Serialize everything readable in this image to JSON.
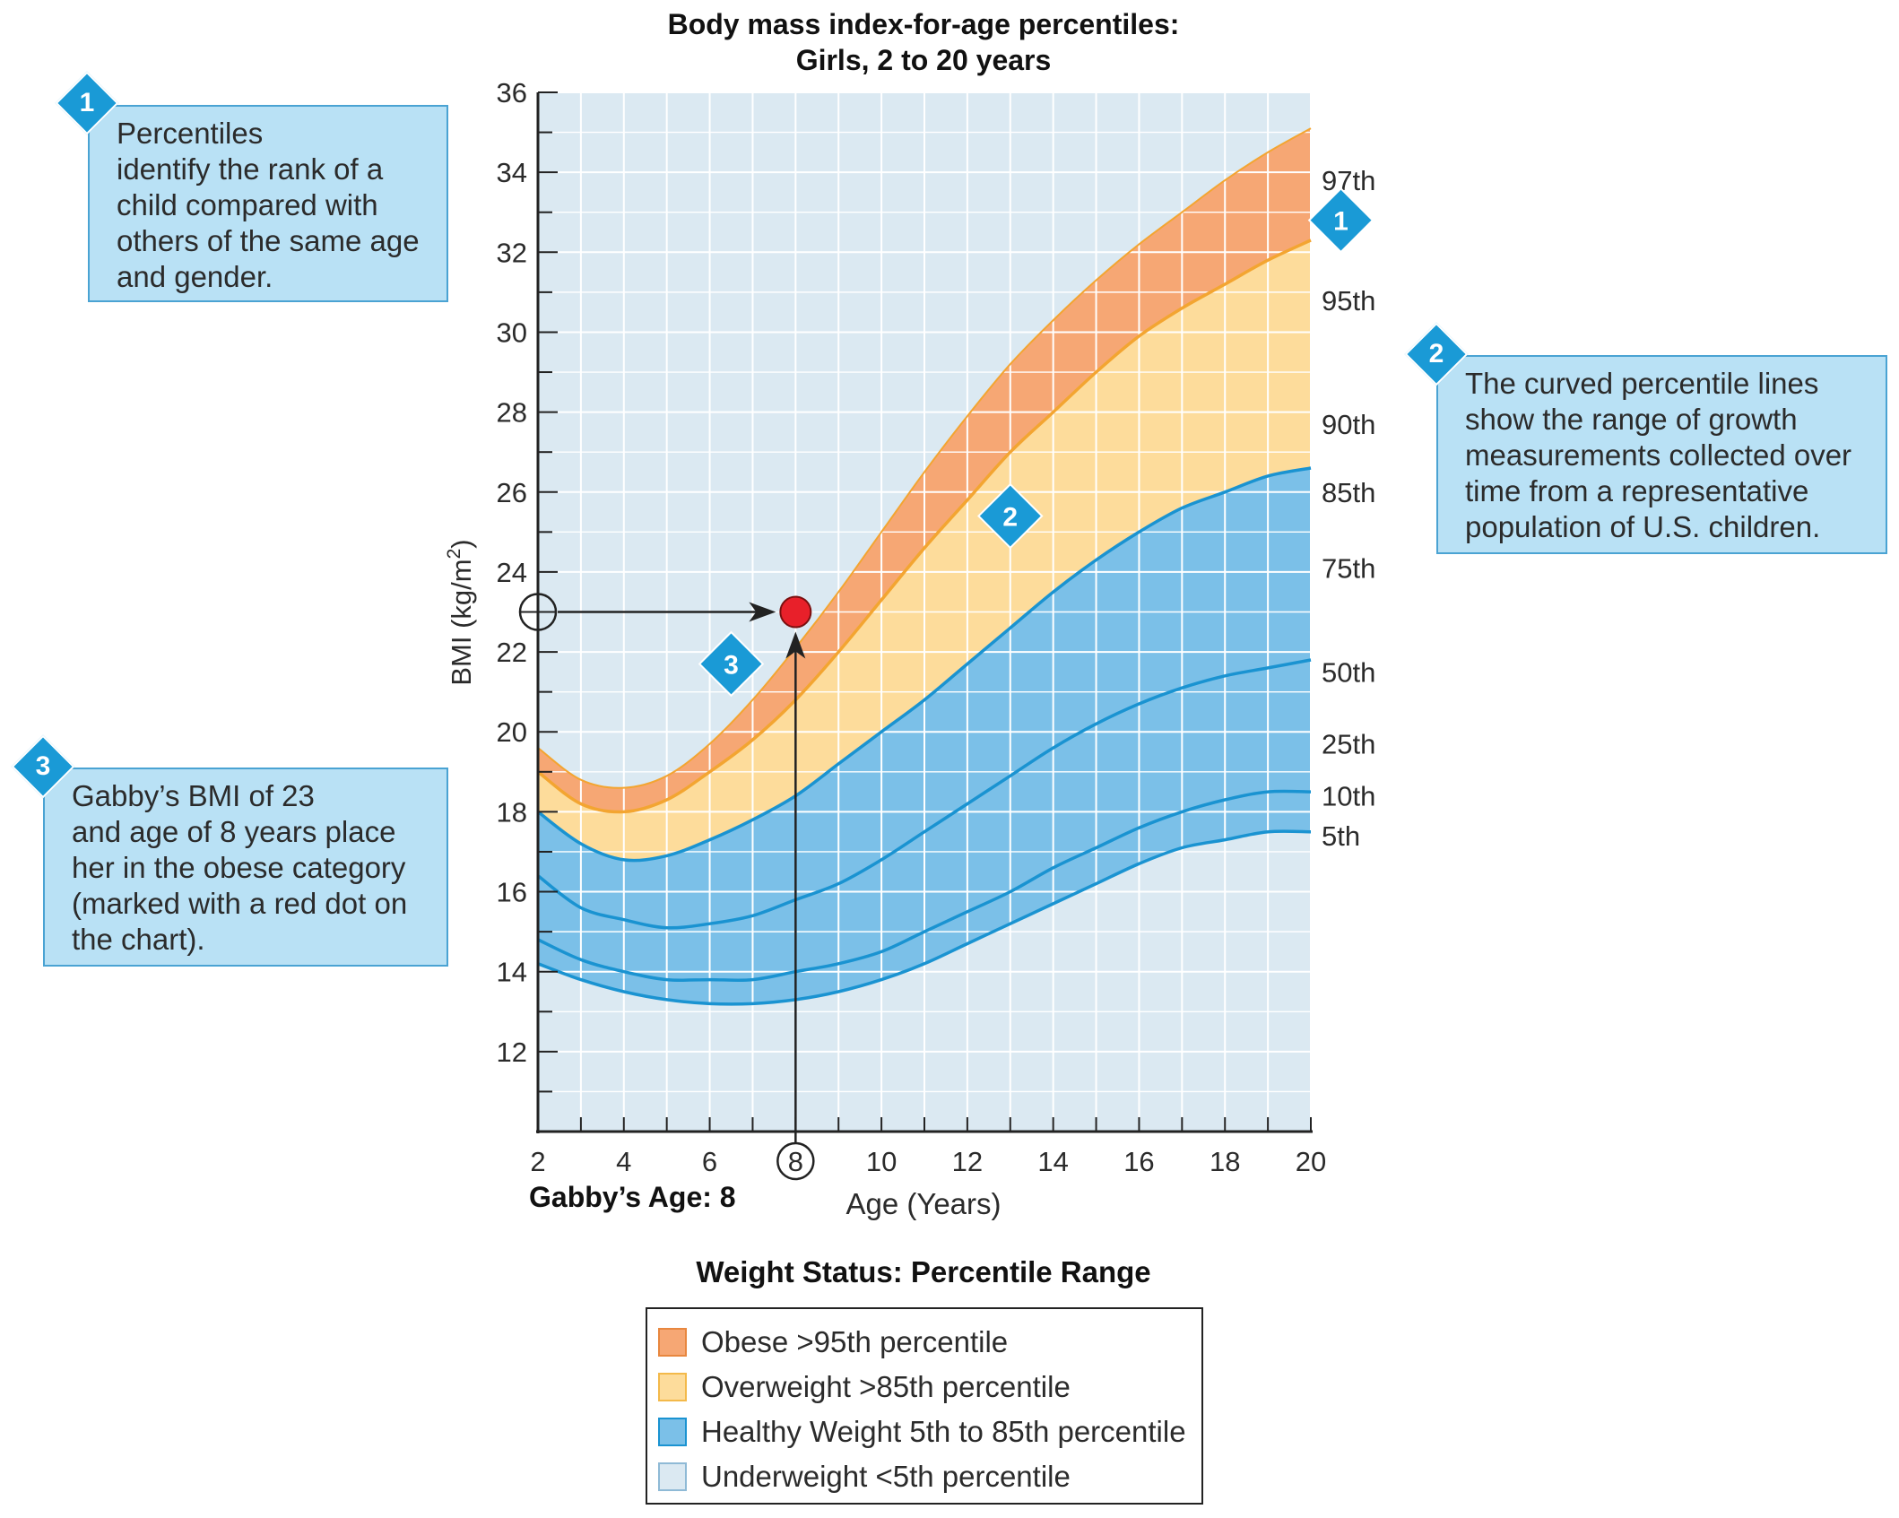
{
  "chart_data": {
    "type": "area",
    "title": "Body mass index-for-age percentiles:",
    "subtitle": "Girls, 2 to 20 years",
    "xlabel": "Age (Years)",
    "ylabel_main": "BMI (kg/m",
    "ylabel_sup": "2",
    "ylabel_end": ")",
    "xlim": [
      2,
      20
    ],
    "ylim": [
      10,
      36
    ],
    "x_ticks": [
      "2",
      "4",
      "6",
      "8",
      "10",
      "12",
      "14",
      "16",
      "18",
      "20"
    ],
    "y_ticks": [
      "12",
      "14",
      "16",
      "18",
      "20",
      "22",
      "24",
      "26",
      "28",
      "30",
      "32",
      "34",
      "36"
    ],
    "ages": [
      2,
      3,
      4,
      5,
      6,
      7,
      8,
      9,
      10,
      11,
      12,
      13,
      14,
      15,
      16,
      17,
      18,
      19,
      20
    ],
    "series": [
      {
        "name": "97th",
        "values": [
          19.6,
          18.8,
          18.6,
          18.9,
          19.7,
          20.8,
          22.1,
          23.5,
          25.0,
          26.5,
          27.9,
          29.2,
          30.3,
          31.3,
          32.2,
          33.0,
          33.8,
          34.5,
          35.1
        ]
      },
      {
        "name": "95th",
        "values": [
          19.0,
          18.2,
          18.0,
          18.3,
          19.0,
          19.8,
          20.8,
          22.0,
          23.3,
          24.6,
          25.8,
          27.0,
          28.0,
          29.0,
          29.9,
          30.6,
          31.2,
          31.8,
          32.3
        ]
      },
      {
        "name": "85th",
        "values": [
          18.0,
          17.2,
          16.8,
          16.9,
          17.3,
          17.8,
          18.4,
          19.2,
          20.0,
          20.8,
          21.7,
          22.6,
          23.5,
          24.3,
          25.0,
          25.6,
          26.0,
          26.4,
          26.6
        ]
      },
      {
        "name": "50th",
        "values": [
          16.4,
          15.6,
          15.3,
          15.1,
          15.2,
          15.4,
          15.8,
          16.2,
          16.8,
          17.5,
          18.2,
          18.9,
          19.6,
          20.2,
          20.7,
          21.1,
          21.4,
          21.6,
          21.8
        ]
      },
      {
        "name": "10th",
        "values": [
          14.8,
          14.3,
          14.0,
          13.8,
          13.8,
          13.8,
          14.0,
          14.2,
          14.5,
          15.0,
          15.5,
          16.0,
          16.6,
          17.1,
          17.6,
          18.0,
          18.3,
          18.5,
          18.5
        ]
      },
      {
        "name": "5th",
        "values": [
          14.2,
          13.8,
          13.5,
          13.3,
          13.2,
          13.2,
          13.3,
          13.5,
          13.8,
          14.2,
          14.7,
          15.2,
          15.7,
          16.2,
          16.7,
          17.1,
          17.3,
          17.5,
          17.5
        ]
      }
    ],
    "right_labels": [
      {
        "text": "97th",
        "y": 33.8
      },
      {
        "text": "95th",
        "y": 30.8
      },
      {
        "text": "90th",
        "y": 27.7
      },
      {
        "text": "85th",
        "y": 26.0
      },
      {
        "text": "75th",
        "y": 24.1
      },
      {
        "text": "50th",
        "y": 21.5
      },
      {
        "text": "25th",
        "y": 19.7
      },
      {
        "text": "10th",
        "y": 18.4
      },
      {
        "text": "5th",
        "y": 17.4
      }
    ],
    "point": {
      "age": 8,
      "bmi": 23,
      "age_label": "8",
      "caption": "Gabby’s Age: 8"
    },
    "badges": [
      {
        "num": "1",
        "x": 20.7,
        "y": 32.8
      },
      {
        "num": "2",
        "x": 13.0,
        "y": 25.4
      },
      {
        "num": "3",
        "x": 6.5,
        "y": 21.7
      }
    ],
    "colors": {
      "obese": "#f6a774",
      "overweight": "#fddc9b",
      "healthy": "#7bc0e8",
      "underweight": "#dbe9f2",
      "line_blue": "#1a93d1",
      "line_orange": "#f3a531",
      "dot": "#e8202a"
    }
  },
  "callouts": [
    {
      "num": "1",
      "text": "Percentiles\nidentify the rank of a\nchild compared with\nothers of the same age\nand gender."
    },
    {
      "num": "2",
      "text": "The curved percentile lines\nshow the range of growth\nmeasurements collected over\ntime from a representative\npopulation of U.S. children."
    },
    {
      "num": "3",
      "text": "Gabby’s BMI of 23\nand age of 8 years place\nher in the obese category\n(marked with a red dot on\nthe chart)."
    }
  ],
  "legend": {
    "title": "Weight Status: Percentile Range",
    "items": [
      {
        "label": "Obese >95th percentile",
        "fill": "#f6a774",
        "border": "#e8873f"
      },
      {
        "label": "Overweight >85th percentile",
        "fill": "#fddc9b",
        "border": "#f3b94a"
      },
      {
        "label": "Healthy Weight 5th to 85th percentile",
        "fill": "#7bc0e8",
        "border": "#1a93d1"
      },
      {
        "label": "Underweight <5th percentile",
        "fill": "#dbe9f2",
        "border": "#8fbad6"
      }
    ]
  }
}
